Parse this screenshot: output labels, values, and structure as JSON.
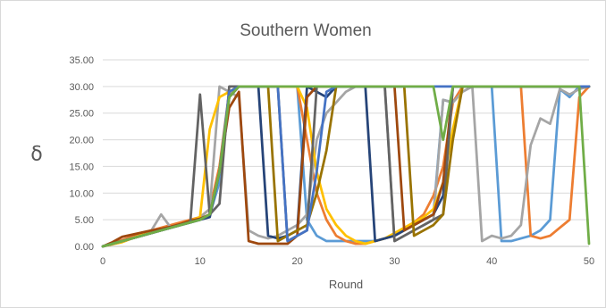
{
  "chart_data": {
    "type": "line",
    "title": "Southern Women",
    "xlabel": "Round",
    "ylabel": "δ",
    "xlim": [
      0,
      50
    ],
    "ylim": [
      0,
      35
    ],
    "x_ticks": [
      "0",
      "10",
      "20",
      "30",
      "40",
      "50"
    ],
    "y_ticks": [
      "0.00",
      "5.00",
      "10.00",
      "15.00",
      "20.00",
      "25.00",
      "30.00",
      "35.00"
    ],
    "grid": "horizontal",
    "legend": "none",
    "series": [
      {
        "color": "#5b9bd5",
        "values": [
          0,
          0.5,
          1,
          1.5,
          2,
          2.5,
          3,
          3.5,
          4,
          4.5,
          5,
          6,
          12,
          28,
          30,
          30,
          30,
          30,
          30,
          30,
          30,
          5,
          2,
          1,
          1,
          1,
          1,
          1,
          1,
          1.5,
          2,
          3,
          4,
          5,
          6,
          27.5,
          27,
          30,
          30,
          30,
          30,
          1,
          1,
          1.5,
          2,
          3,
          5,
          29.5,
          28,
          30,
          30
        ]
      },
      {
        "color": "#ed7d31",
        "values": [
          0,
          0.6,
          1.2,
          1.8,
          2.4,
          3,
          3.5,
          4,
          4.5,
          5,
          5.5,
          7,
          15,
          29,
          30,
          30,
          30,
          30,
          30,
          30,
          30,
          20,
          10,
          5,
          2,
          1,
          0.5,
          0.5,
          1,
          1.5,
          2,
          3,
          4.5,
          6,
          9.5,
          15,
          27,
          30,
          30,
          30,
          30,
          30,
          30,
          30,
          2,
          1.5,
          2,
          3.5,
          5,
          28,
          30
        ]
      },
      {
        "color": "#a5a5a5",
        "values": [
          0,
          0.5,
          1,
          1.5,
          2,
          3,
          6,
          3.5,
          4,
          4.5,
          5.5,
          7,
          30,
          29,
          28,
          3,
          2,
          1.5,
          2,
          3,
          4,
          6,
          20,
          25,
          27,
          29,
          30,
          30,
          30,
          30,
          1,
          2,
          3,
          4,
          5,
          27.5,
          27,
          29,
          30,
          1,
          2,
          1.5,
          2,
          4,
          19,
          24,
          23,
          29.5,
          28.5,
          29.5,
          30
        ]
      },
      {
        "color": "#ffc000",
        "values": [
          0,
          0.4,
          0.8,
          1.5,
          2.2,
          2.8,
          3.2,
          3.6,
          4.2,
          4.8,
          5.5,
          22,
          28,
          29,
          30,
          30,
          30,
          30,
          30,
          30,
          30,
          26,
          14,
          7,
          4,
          2,
          1,
          0.5,
          1,
          1.5,
          2.5,
          3.5,
          4.5,
          5.5,
          7,
          12,
          22,
          30,
          30,
          30,
          30,
          30,
          30,
          30,
          30,
          30,
          30,
          30,
          30,
          30,
          30
        ]
      },
      {
        "color": "#264478",
        "values": [
          0,
          0.5,
          1,
          1.5,
          2,
          2.5,
          3,
          3.5,
          4,
          4.5,
          5,
          5.5,
          14,
          28,
          30,
          30,
          30,
          2,
          1.5,
          2,
          3,
          30,
          29,
          28,
          30,
          30,
          30,
          30,
          1,
          1.5,
          2,
          3,
          4,
          5,
          6,
          9.5,
          30,
          30,
          30,
          30,
          30,
          30,
          30,
          30,
          30,
          30,
          30,
          30,
          30,
          30,
          30
        ]
      },
      {
        "color": "#9e480e",
        "values": [
          0,
          0.8,
          1.8,
          2.2,
          2.6,
          3,
          3.3,
          3.7,
          4.2,
          4.8,
          5.2,
          6,
          14,
          26,
          29,
          1,
          0.5,
          0.5,
          0.5,
          0.5,
          2,
          28,
          30,
          30,
          30,
          30,
          30,
          30,
          30,
          30,
          30,
          3,
          4,
          5,
          6,
          12,
          30,
          30,
          30,
          30,
          30,
          30,
          30,
          30,
          30,
          30,
          30,
          30,
          30,
          30,
          30
        ]
      },
      {
        "color": "#636363",
        "values": [
          0,
          0.5,
          1,
          1.5,
          2,
          2.5,
          3,
          3.5,
          4,
          4.5,
          28.5,
          6,
          8,
          30,
          30,
          30,
          30,
          30,
          30,
          1,
          2,
          3,
          30,
          30,
          30,
          30,
          30,
          30,
          30,
          30,
          1,
          2,
          3,
          4,
          5,
          6,
          30,
          30,
          30,
          30,
          30,
          30,
          30,
          30,
          30,
          30,
          30,
          30,
          30,
          30,
          30
        ]
      },
      {
        "color": "#997300",
        "values": [
          0,
          0.5,
          1,
          1.5,
          2,
          2.5,
          3,
          3.5,
          4,
          4.5,
          5,
          6,
          14,
          28,
          30,
          30,
          30,
          30,
          1,
          2,
          3,
          4,
          10,
          18,
          30,
          30,
          30,
          30,
          30,
          30,
          30,
          30,
          2,
          3,
          4,
          6,
          20,
          30,
          30,
          30,
          30,
          30,
          30,
          30,
          30,
          30,
          30,
          30,
          30,
          30,
          30
        ]
      },
      {
        "color": "#4472c4",
        "values": [
          0,
          0.5,
          1,
          1.5,
          2,
          2.5,
          3,
          3.5,
          4,
          4.5,
          5,
          6,
          14,
          29,
          30,
          30,
          30,
          30,
          30,
          1,
          2,
          3,
          14,
          29,
          30,
          30,
          30,
          30,
          30,
          30,
          30,
          30,
          30,
          30,
          30,
          30,
          30,
          30,
          30,
          30,
          30,
          30,
          30,
          30,
          30,
          30,
          30,
          30,
          30,
          30,
          30
        ]
      },
      {
        "color": "#70ad47",
        "values": [
          0,
          0.5,
          1,
          1.5,
          2,
          2.5,
          3,
          3.5,
          4,
          4.5,
          5,
          6,
          14,
          28,
          30,
          30,
          30,
          30,
          30,
          30,
          30,
          30,
          30,
          30,
          30,
          30,
          30,
          30,
          30,
          30,
          30,
          30,
          30,
          30,
          30,
          20,
          30,
          30,
          30,
          30,
          30,
          30,
          30,
          30,
          30,
          30,
          30,
          30,
          30,
          30,
          0.5
        ]
      }
    ]
  }
}
